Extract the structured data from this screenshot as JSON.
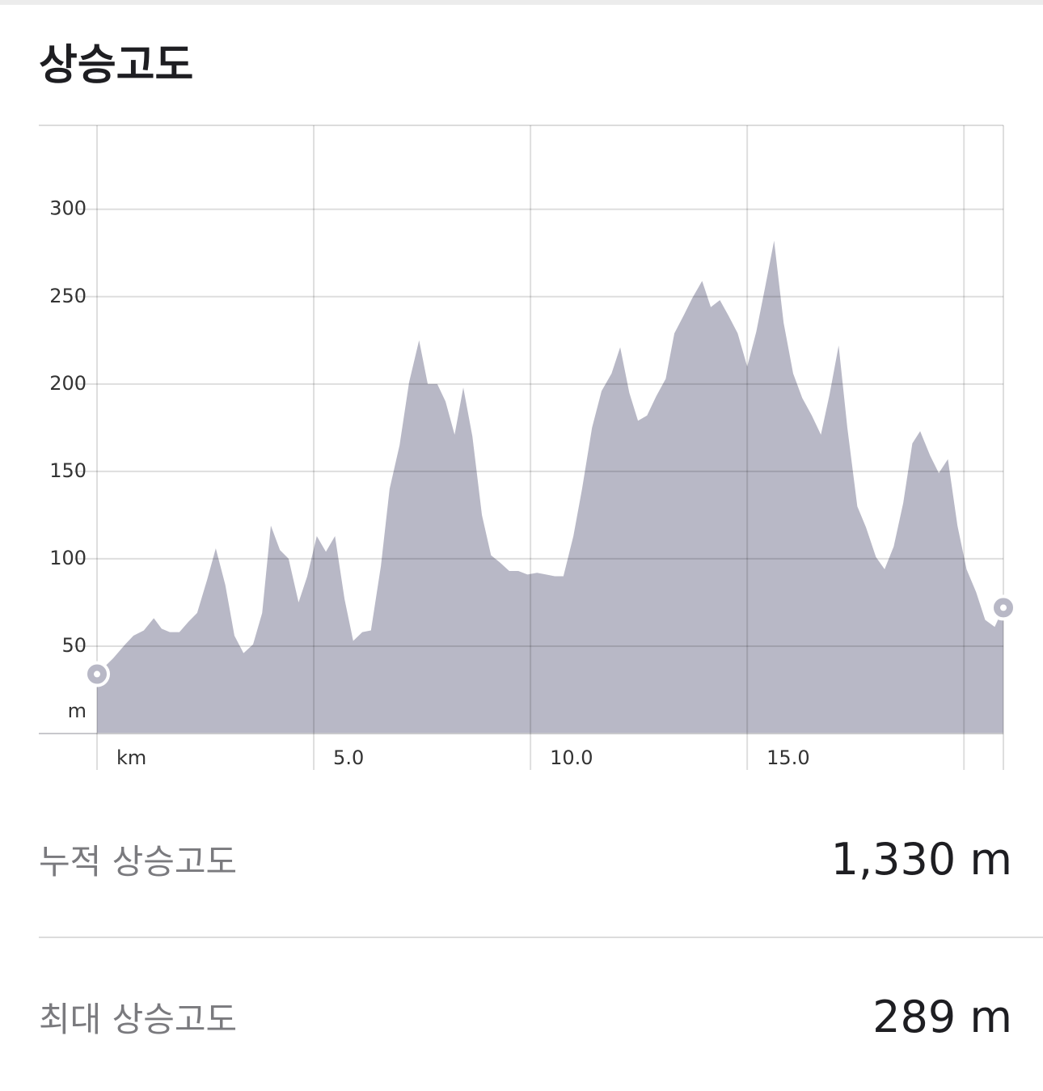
{
  "header": {
    "title": "상승고도"
  },
  "chart_data": {
    "type": "area",
    "color": "#b8b8c6",
    "y_label": "m",
    "x": [
      0,
      0.37,
      0.65,
      0.84,
      1.08,
      1.31,
      1.49,
      1.68,
      1.9,
      2.11,
      2.31,
      2.54,
      2.74,
      2.96,
      3.17,
      3.38,
      3.6,
      3.81,
      4.01,
      4.22,
      4.42,
      4.65,
      4.85,
      5.07,
      5.28,
      5.49,
      5.71,
      5.91,
      6.12,
      6.32,
      6.55,
      6.75,
      6.98,
      7.2,
      7.43,
      7.63,
      7.85,
      8.04,
      8.25,
      8.45,
      8.66,
      8.88,
      9.09,
      9.29,
      9.51,
      9.72,
      9.93,
      10.15,
      10.36,
      10.56,
      10.76,
      10.99,
      11.19,
      11.42,
      11.64,
      11.87,
      12.07,
      12.28,
      12.48,
      12.69,
      12.9,
      13.12,
      13.32,
      13.53,
      13.73,
      13.96,
      14.16,
      14.37,
      14.57,
      14.78,
      15,
      15.21,
      15.41,
      15.62,
      15.84,
      16.06,
      16.27,
      16.49,
      16.7,
      16.9,
      17.11,
      17.31,
      17.54,
      17.74,
      17.97,
      18.17,
      18.38,
      18.6,
      18.81,
      18.99,
      19.22,
      19.42,
      19.63,
      19.85,
      20.06,
      20.28,
      20.49,
      20.71,
      20.91
    ],
    "values": [
      34,
      43,
      51,
      56,
      59,
      66,
      60,
      58,
      58,
      64,
      69,
      88,
      106,
      85,
      56,
      46,
      51,
      69,
      119,
      105,
      100,
      75,
      90,
      113,
      104,
      113,
      77,
      53,
      58,
      59,
      96,
      140,
      165,
      201,
      225,
      200,
      200,
      190,
      171,
      198,
      170,
      125,
      102,
      98,
      93,
      93,
      91,
      92,
      91,
      90,
      90,
      113,
      140,
      175,
      196,
      206,
      221,
      195,
      179,
      182,
      193,
      203,
      229,
      239,
      249,
      259,
      244,
      248,
      239,
      229,
      210,
      230,
      255,
      282,
      235,
      206,
      192,
      182,
      171,
      194,
      222,
      175,
      130,
      118,
      101,
      94,
      107,
      132,
      166,
      173,
      159,
      149,
      157,
      119,
      94,
      81,
      65,
      61,
      72
    ],
    "xlim": [
      0,
      20.91
    ],
    "ylim": [
      0,
      348
    ],
    "xticks": [
      {
        "value": 0,
        "label": "km"
      },
      {
        "value": 5,
        "label": "5.0"
      },
      {
        "value": 10,
        "label": "10.0"
      },
      {
        "value": 15,
        "label": "15.0"
      }
    ],
    "minor_xticks": [
      20
    ],
    "yticks": [
      50,
      100,
      150,
      200,
      250,
      300
    ],
    "grid": true
  },
  "stats": [
    {
      "label": "누적 상승고도",
      "value": "1,330 m"
    },
    {
      "label": "최대 상승고도",
      "value": "289 m"
    }
  ]
}
